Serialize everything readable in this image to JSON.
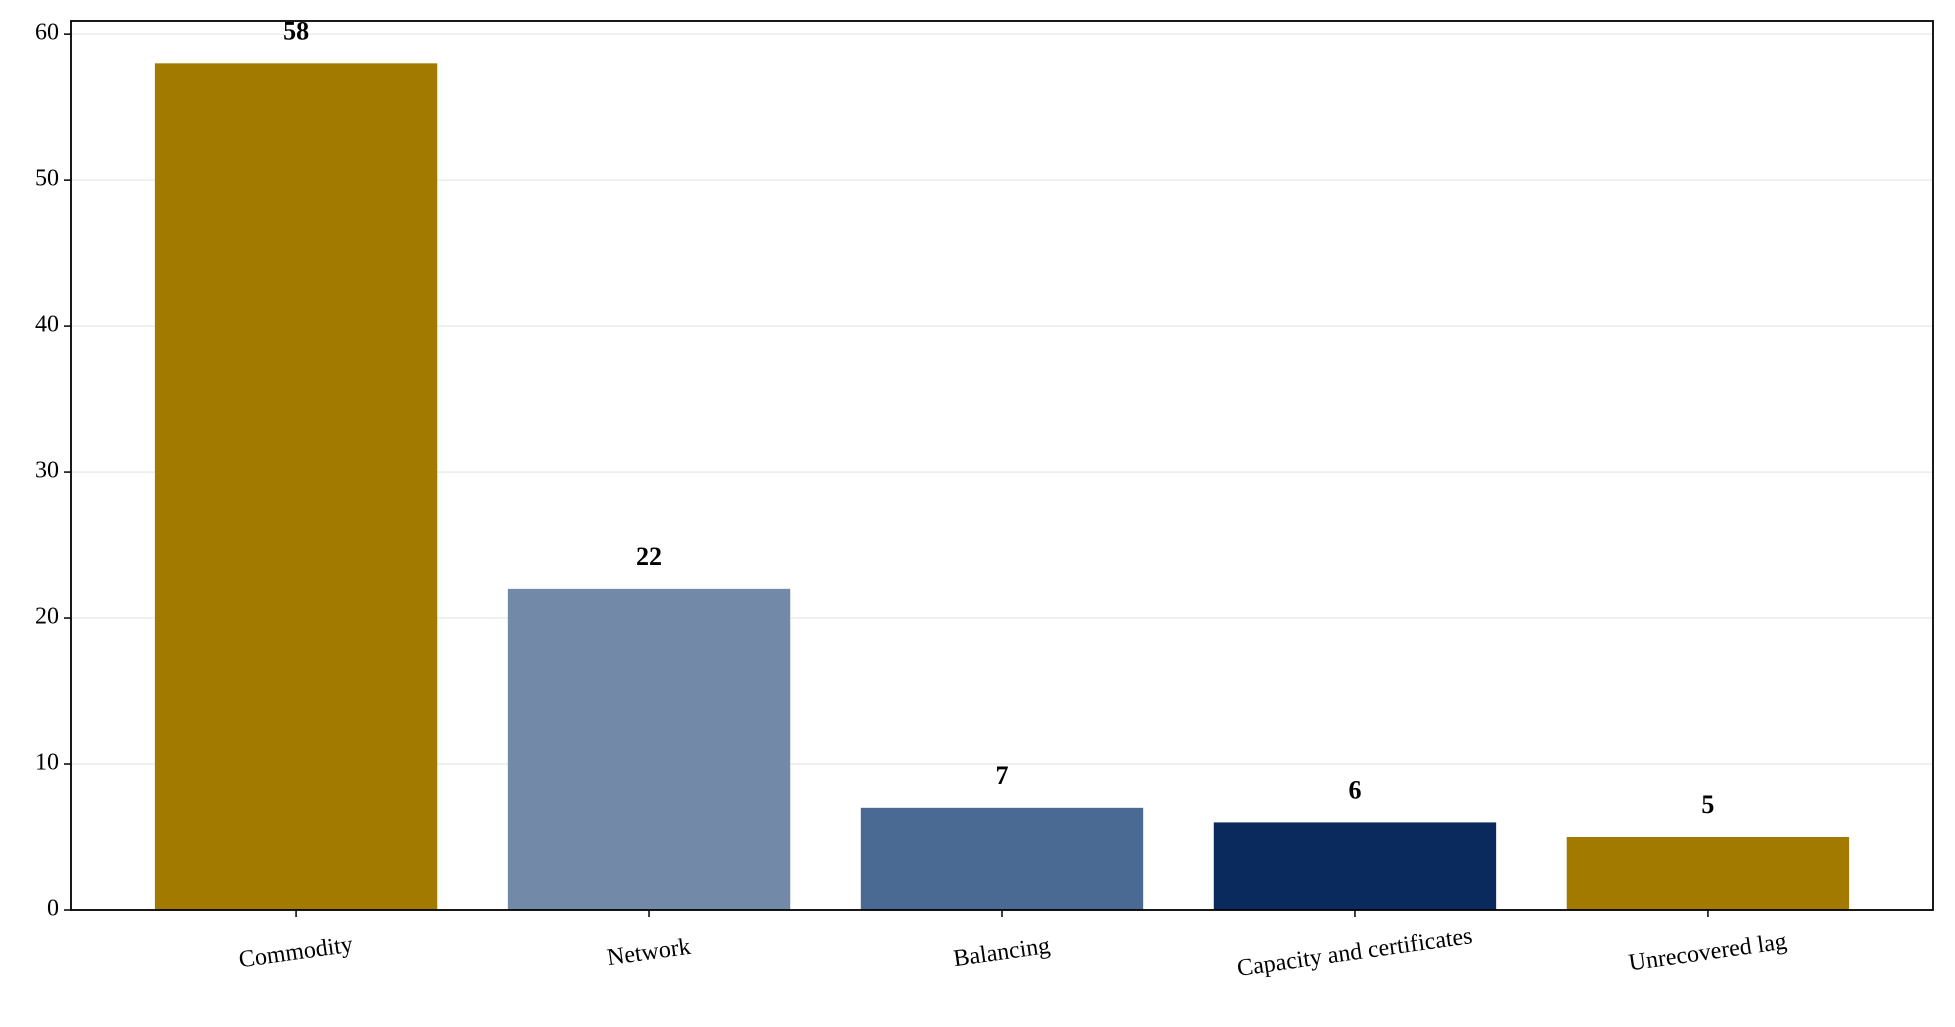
{
  "chart_data": {
    "type": "bar",
    "categories": [
      "Commodity",
      "Network",
      "Balancing",
      "Capacity and certificates",
      "Unrecovered lag"
    ],
    "values": [
      58,
      22,
      7,
      6,
      5
    ],
    "colors": [
      "#a37a00",
      "#7289a8",
      "#4a6a93",
      "#0a2a5e",
      "#a37a00"
    ],
    "ylim": [
      0,
      60.9
    ],
    "yticks": [
      0,
      10,
      20,
      30,
      40,
      50,
      60
    ],
    "grid": true
  }
}
